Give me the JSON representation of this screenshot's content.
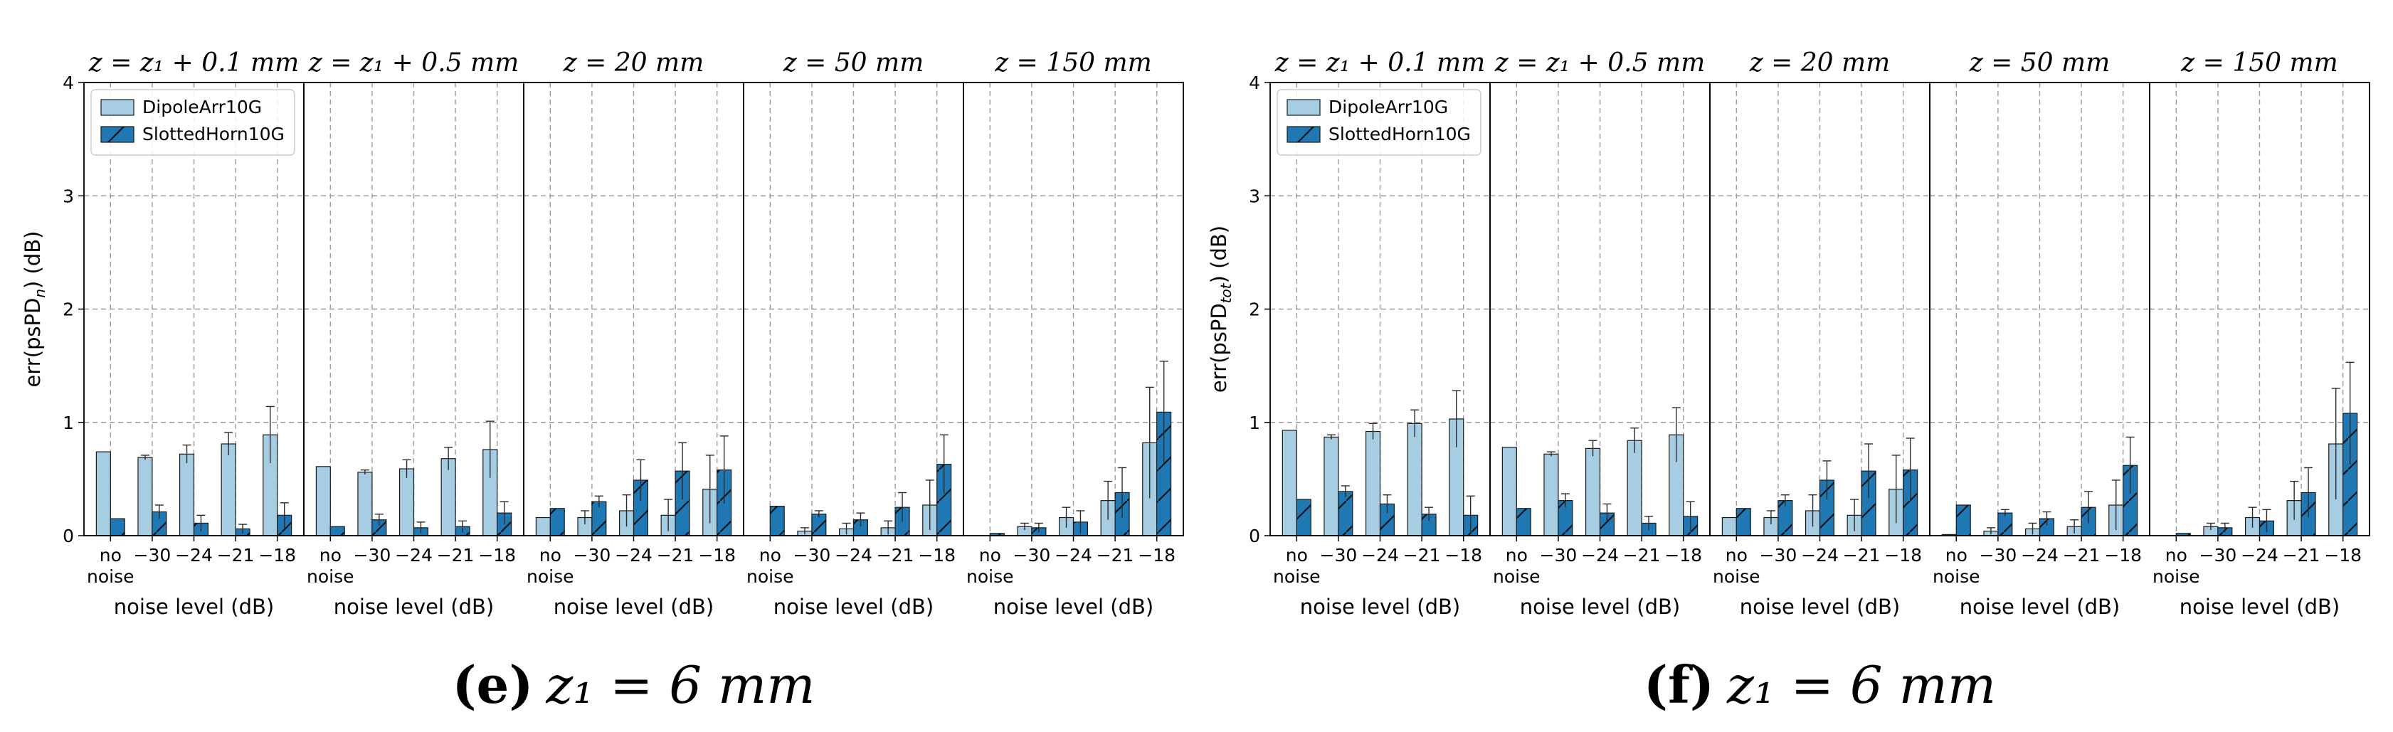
{
  "colors": {
    "dipole": "#a6cde2",
    "horn": "#1f78b4",
    "edge": "#1a1a1a",
    "grid": "#9a9a9a"
  },
  "chart_data": [
    {
      "type": "bar",
      "ylabel_prefix": "err(psPD",
      "ylabel_sub": "n",
      "ylabel_suffix": ") (dB)",
      "ylim": [
        0,
        4
      ],
      "yticks": [
        "0",
        "1",
        "2",
        "3",
        "4"
      ],
      "xlabel": "noise level (dB)",
      "grid": true,
      "legend": {
        "placement": "top-left",
        "entries": [
          "DipoleArr10G",
          "SlottedHorn10G"
        ]
      },
      "caption": {
        "letter": "(e)",
        "text": "z₁ = 6 mm"
      },
      "panels": [
        {
          "title": "z = z₁ + 0.1 mm",
          "categories": [
            "no noise",
            "−30",
            "−24",
            "−21",
            "−18"
          ],
          "series": [
            {
              "name": "DipoleArr10G",
              "values": [
                0.74,
                0.69,
                0.72,
                0.81,
                0.89
              ],
              "errors": [
                0.0,
                0.02,
                0.08,
                0.1,
                0.25
              ]
            },
            {
              "name": "SlottedHorn10G",
              "values": [
                0.15,
                0.21,
                0.11,
                0.06,
                0.18
              ],
              "errors": [
                0.0,
                0.06,
                0.07,
                0.04,
                0.11
              ]
            }
          ]
        },
        {
          "title": "z = z₁ + 0.5 mm",
          "categories": [
            "no noise",
            "−30",
            "−24",
            "−21",
            "−18"
          ],
          "series": [
            {
              "name": "DipoleArr10G",
              "values": [
                0.61,
                0.56,
                0.59,
                0.68,
                0.76
              ],
              "errors": [
                0.0,
                0.02,
                0.08,
                0.1,
                0.25
              ]
            },
            {
              "name": "SlottedHorn10G",
              "values": [
                0.08,
                0.14,
                0.07,
                0.08,
                0.2
              ],
              "errors": [
                0.0,
                0.05,
                0.05,
                0.05,
                0.1
              ]
            }
          ]
        },
        {
          "title": "z = 20 mm",
          "categories": [
            "no noise",
            "−30",
            "−24",
            "−21",
            "−18"
          ],
          "series": [
            {
              "name": "DipoleArr10G",
              "values": [
                0.16,
                0.16,
                0.22,
                0.18,
                0.41
              ],
              "errors": [
                0.0,
                0.06,
                0.14,
                0.14,
                0.3
              ]
            },
            {
              "name": "SlottedHorn10G",
              "values": [
                0.24,
                0.3,
                0.49,
                0.57,
                0.58
              ],
              "errors": [
                0.0,
                0.05,
                0.18,
                0.25,
                0.3
              ]
            }
          ]
        },
        {
          "title": "z = 50 mm",
          "categories": [
            "no noise",
            "−30",
            "−24",
            "−21",
            "−18"
          ],
          "series": [
            {
              "name": "DipoleArr10G",
              "values": [
                0.0,
                0.04,
                0.06,
                0.07,
                0.27
              ],
              "errors": [
                0.0,
                0.03,
                0.05,
                0.06,
                0.22
              ]
            },
            {
              "name": "SlottedHorn10G",
              "values": [
                0.26,
                0.19,
                0.14,
                0.25,
                0.63
              ],
              "errors": [
                0.0,
                0.03,
                0.06,
                0.13,
                0.26
              ]
            }
          ]
        },
        {
          "title": "z = 150 mm",
          "categories": [
            "no noise",
            "−30",
            "−24",
            "−21",
            "−18"
          ],
          "series": [
            {
              "name": "DipoleArr10G",
              "values": [
                0.0,
                0.08,
                0.16,
                0.31,
                0.82
              ],
              "errors": [
                0.0,
                0.03,
                0.09,
                0.17,
                0.49
              ]
            },
            {
              "name": "SlottedHorn10G",
              "values": [
                0.02,
                0.07,
                0.12,
                0.38,
                1.09
              ],
              "errors": [
                0.0,
                0.04,
                0.1,
                0.22,
                0.45
              ]
            }
          ]
        }
      ]
    },
    {
      "type": "bar",
      "ylabel_prefix": "err(psPD",
      "ylabel_sub": "tot",
      "ylabel_suffix": ") (dB)",
      "ylim": [
        0,
        4
      ],
      "yticks": [
        "0",
        "1",
        "2",
        "3",
        "4"
      ],
      "xlabel": "noise level (dB)",
      "grid": true,
      "legend": {
        "placement": "top-left",
        "entries": [
          "DipoleArr10G",
          "SlottedHorn10G"
        ]
      },
      "caption": {
        "letter": "(f)",
        "text": "z₁ = 6 mm"
      },
      "panels": [
        {
          "title": "z = z₁ + 0.1 mm",
          "categories": [
            "no noise",
            "−30",
            "−24",
            "−21",
            "−18"
          ],
          "series": [
            {
              "name": "DipoleArr10G",
              "values": [
                0.93,
                0.87,
                0.92,
                0.99,
                1.03
              ],
              "errors": [
                0.0,
                0.02,
                0.07,
                0.12,
                0.25
              ]
            },
            {
              "name": "SlottedHorn10G",
              "values": [
                0.32,
                0.39,
                0.28,
                0.19,
                0.18
              ],
              "errors": [
                0.0,
                0.05,
                0.08,
                0.06,
                0.17
              ]
            }
          ]
        },
        {
          "title": "z = z₁ + 0.5 mm",
          "categories": [
            "no noise",
            "−30",
            "−24",
            "−21",
            "−18"
          ],
          "series": [
            {
              "name": "DipoleArr10G",
              "values": [
                0.78,
                0.72,
                0.77,
                0.84,
                0.89
              ],
              "errors": [
                0.0,
                0.02,
                0.07,
                0.11,
                0.24
              ]
            },
            {
              "name": "SlottedHorn10G",
              "values": [
                0.24,
                0.31,
                0.2,
                0.11,
                0.17
              ],
              "errors": [
                0.0,
                0.06,
                0.08,
                0.06,
                0.13
              ]
            }
          ]
        },
        {
          "title": "z = 20 mm",
          "categories": [
            "no noise",
            "−30",
            "−24",
            "−21",
            "−18"
          ],
          "series": [
            {
              "name": "DipoleArr10G",
              "values": [
                0.16,
                0.16,
                0.22,
                0.18,
                0.41
              ],
              "errors": [
                0.0,
                0.06,
                0.14,
                0.14,
                0.3
              ]
            },
            {
              "name": "SlottedHorn10G",
              "values": [
                0.24,
                0.31,
                0.49,
                0.57,
                0.58
              ],
              "errors": [
                0.0,
                0.05,
                0.17,
                0.24,
                0.28
              ]
            }
          ]
        },
        {
          "title": "z = 50 mm",
          "categories": [
            "no noise",
            "−30",
            "−24",
            "−21",
            "−18"
          ],
          "series": [
            {
              "name": "DipoleArr10G",
              "values": [
                0.01,
                0.04,
                0.06,
                0.08,
                0.27
              ],
              "errors": [
                0.0,
                0.03,
                0.05,
                0.06,
                0.22
              ]
            },
            {
              "name": "SlottedHorn10G",
              "values": [
                0.27,
                0.2,
                0.15,
                0.25,
                0.62
              ],
              "errors": [
                0.0,
                0.03,
                0.06,
                0.14,
                0.25
              ]
            }
          ]
        },
        {
          "title": "z = 150 mm",
          "categories": [
            "no noise",
            "−30",
            "−24",
            "−21",
            "−18"
          ],
          "series": [
            {
              "name": "DipoleArr10G",
              "values": [
                0.0,
                0.08,
                0.16,
                0.31,
                0.81
              ],
              "errors": [
                0.0,
                0.03,
                0.09,
                0.17,
                0.49
              ]
            },
            {
              "name": "SlottedHorn10G",
              "values": [
                0.02,
                0.07,
                0.13,
                0.38,
                1.08
              ],
              "errors": [
                0.0,
                0.04,
                0.1,
                0.22,
                0.45
              ]
            }
          ]
        }
      ]
    }
  ]
}
